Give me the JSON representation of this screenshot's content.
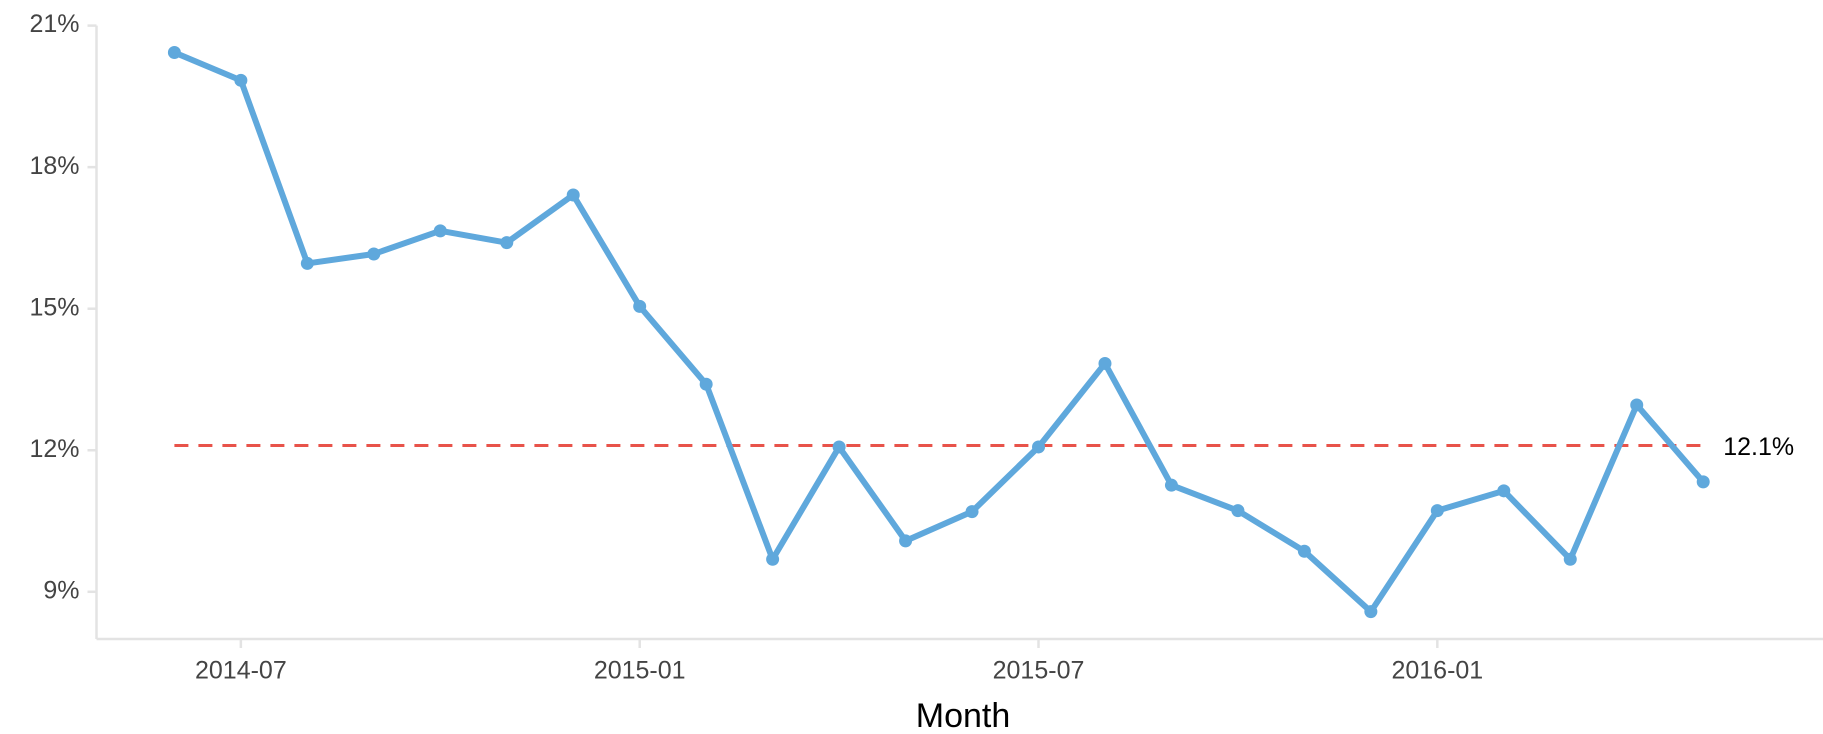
{
  "chart_data": {
    "type": "line",
    "x_label": "Month",
    "x": [
      "2014-06",
      "2014-07",
      "2014-08",
      "2014-09",
      "2014-10",
      "2014-11",
      "2014-12",
      "2015-01",
      "2015-02",
      "2015-03",
      "2015-04",
      "2015-05",
      "2015-06",
      "2015-07",
      "2015-08",
      "2015-09",
      "2015-10",
      "2015-11",
      "2015-12",
      "2016-01",
      "2016-02",
      "2016-03",
      "2016-04",
      "2016-05"
    ],
    "series": [
      {
        "color": "#5fa8dc",
        "values": [
          20.43,
          19.84,
          15.96,
          16.16,
          16.65,
          16.4,
          17.41,
          15.05,
          13.4,
          9.69,
          12.07,
          10.08,
          10.7,
          12.07,
          13.84,
          11.26,
          10.72,
          9.86,
          8.58,
          10.72,
          11.14,
          9.69,
          12.96,
          11.33
        ]
      }
    ],
    "reference_line": {
      "value": 12.1,
      "label": "12.1%",
      "color": "#e8534a"
    },
    "xticks": [
      "2014-07",
      "2015-01",
      "2015-07",
      "2016-01"
    ],
    "ylim": [
      8,
      21
    ],
    "yticks": [
      {
        "value": 9,
        "label": "9%"
      },
      {
        "value": 12,
        "label": "12%"
      },
      {
        "value": 15,
        "label": "15%"
      },
      {
        "value": 18,
        "label": "18%"
      },
      {
        "value": 21,
        "label": "21%"
      }
    ],
    "grid": false
  }
}
